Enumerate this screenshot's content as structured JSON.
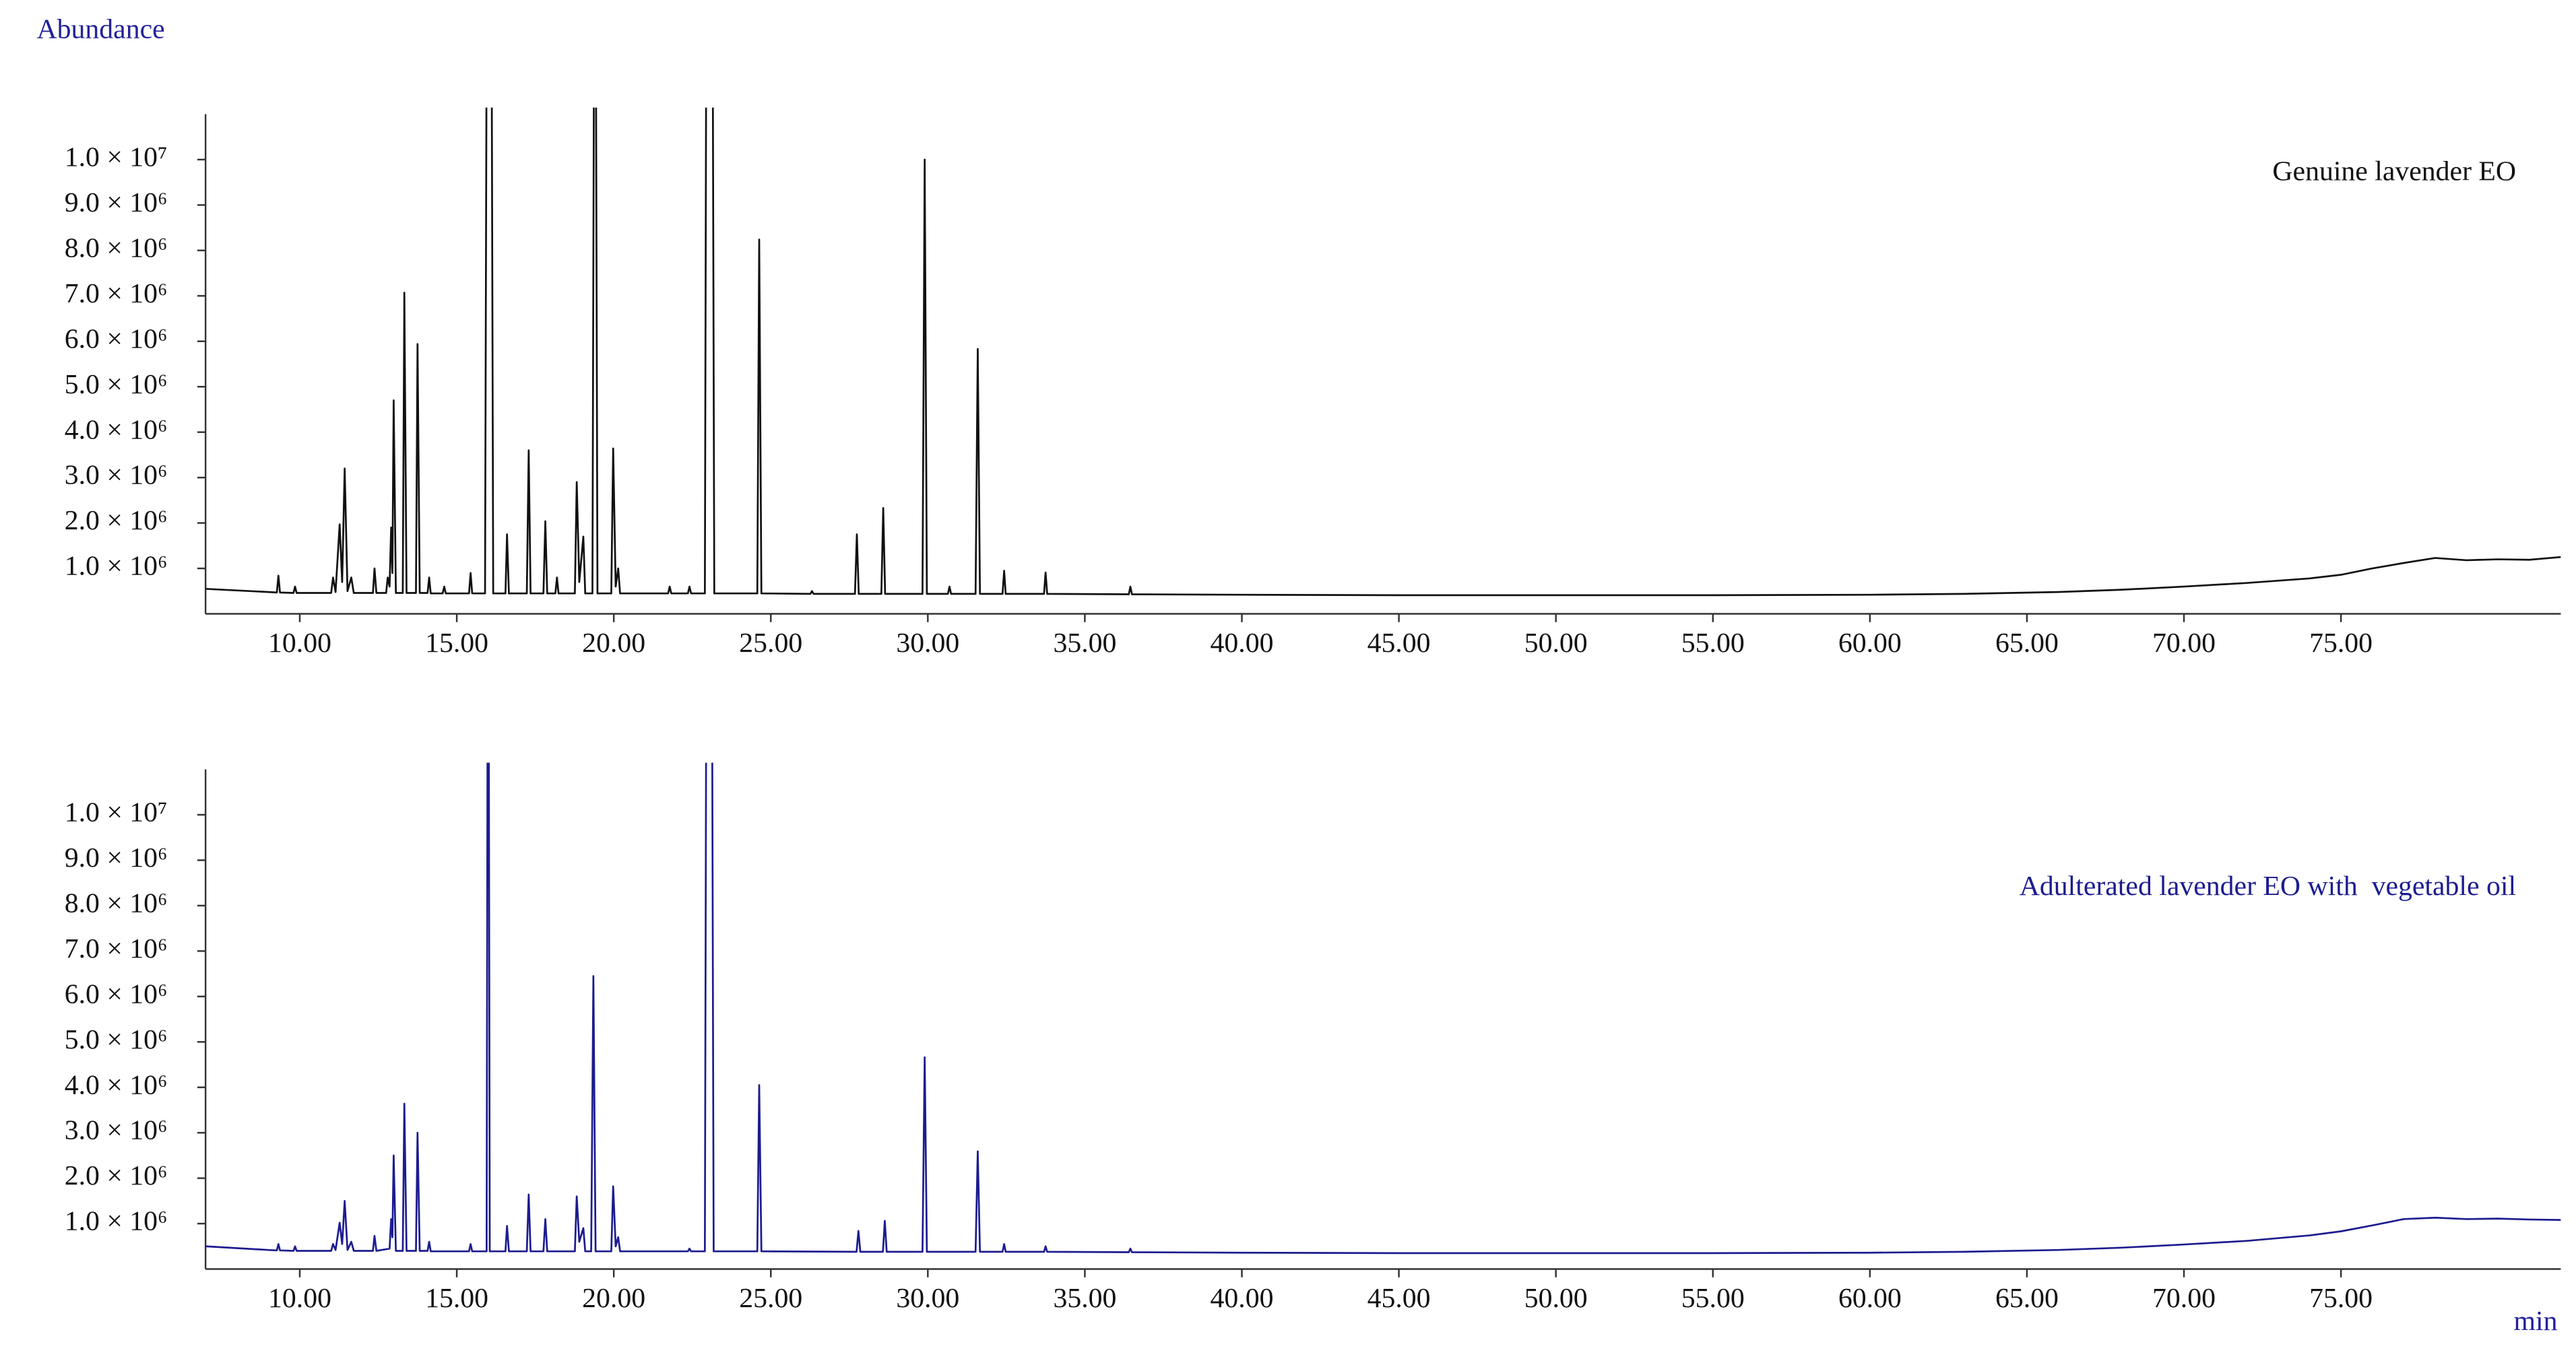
{
  "chart_data": [
    {
      "type": "line",
      "y_label": "Abundance",
      "legend": "upper right",
      "xlim": [
        7,
        82
      ],
      "ylim": [
        0,
        11000000
      ],
      "xticks": [
        {
          "value": 10,
          "label": "10.00"
        },
        {
          "value": 15,
          "label": "15.00"
        },
        {
          "value": 20,
          "label": "20.00"
        },
        {
          "value": 25,
          "label": "25.00"
        },
        {
          "value": 30,
          "label": "30.00"
        },
        {
          "value": 35,
          "label": "35.00"
        },
        {
          "value": 40,
          "label": "40.00"
        },
        {
          "value": 45,
          "label": "45.00"
        },
        {
          "value": 50,
          "label": "50.00"
        },
        {
          "value": 55,
          "label": "55.00"
        },
        {
          "value": 60,
          "label": "60.00"
        },
        {
          "value": 65,
          "label": "65.00"
        },
        {
          "value": 70,
          "label": "70.00"
        },
        {
          "value": 75,
          "label": "75.00"
        }
      ],
      "yticks": [
        {
          "value": 1000000,
          "label": "1.0 × 10⁶"
        },
        {
          "value": 2000000,
          "label": "2.0 × 10⁶"
        },
        {
          "value": 3000000,
          "label": "3.0 × 10⁶"
        },
        {
          "value": 4000000,
          "label": "4.0 × 10⁶"
        },
        {
          "value": 5000000,
          "label": "5.0 × 10⁶"
        },
        {
          "value": 6000000,
          "label": "6.0 × 10⁶"
        },
        {
          "value": 7000000,
          "label": "7.0 × 10⁶"
        },
        {
          "value": 8000000,
          "label": "8.0 × 10⁶"
        },
        {
          "value": 9000000,
          "label": "9.0 × 10⁶"
        },
        {
          "value": 10000000,
          "label": "1.0 × 10⁷"
        }
      ],
      "x": [
        7,
        9,
        9.27,
        9.32,
        9.37,
        9.8,
        9.85,
        9.9,
        11,
        11.06,
        11.14,
        11.27,
        11.35,
        11.43,
        11.52,
        11.64,
        11.72,
        12.33,
        12.38,
        12.44,
        12.75,
        12.8,
        12.86,
        12.91,
        12.95,
        12.99,
        13.06,
        13.28,
        13.33,
        13.4,
        13.7,
        13.75,
        13.82,
        14.07,
        14.12,
        14.17,
        14.55,
        14.6,
        14.65,
        15.39,
        15.44,
        15.49,
        15.9,
        15.98,
        16.08,
        16.16,
        16.55,
        16.6,
        16.66,
        17.23,
        17.29,
        17.35,
        17.76,
        17.82,
        17.88,
        18.14,
        18.19,
        18.24,
        18.76,
        18.82,
        18.9,
        19.03,
        19.09,
        19.32,
        19.4,
        19.48,
        19.92,
        19.98,
        20.06,
        20.14,
        20.2,
        21.73,
        21.78,
        21.83,
        22.36,
        22.41,
        22.46,
        22.9,
        22.97,
        23.12,
        23.2,
        24.57,
        24.63,
        24.7,
        26.26,
        26.31,
        26.36,
        27.68,
        27.74,
        27.8,
        28.52,
        28.58,
        28.64,
        29.83,
        29.9,
        29.97,
        30.64,
        30.69,
        30.74,
        31.52,
        31.59,
        31.66,
        32.38,
        32.43,
        32.48,
        33.7,
        33.75,
        33.8,
        36.4,
        36.45,
        36.5,
        40,
        45,
        50,
        55,
        60,
        63,
        66,
        68,
        70,
        72,
        74,
        75,
        76,
        77,
        78,
        79,
        80,
        81,
        82
      ],
      "series": [
        {
          "name": "Genuine lavender EO",
          "color": "#111111",
          "values": [
            550000,
            480000,
            470000,
            840000,
            470000,
            460000,
            600000,
            460000,
            460000,
            800000,
            480000,
            1970000,
            700000,
            3200000,
            500000,
            800000,
            460000,
            460000,
            1000000,
            460000,
            460000,
            800000,
            600000,
            1900000,
            900000,
            4700000,
            460000,
            460000,
            7070000,
            460000,
            460000,
            5940000,
            460000,
            460000,
            800000,
            450000,
            450000,
            600000,
            450000,
            450000,
            900000,
            450000,
            450000,
            20000000,
            20000000,
            450000,
            450000,
            1750000,
            450000,
            450000,
            3600000,
            450000,
            450000,
            2040000,
            450000,
            450000,
            800000,
            450000,
            450000,
            2900000,
            700000,
            1700000,
            450000,
            450000,
            20000000,
            450000,
            450000,
            3640000,
            600000,
            1000000,
            450000,
            450000,
            600000,
            450000,
            450000,
            600000,
            450000,
            450000,
            20000000,
            20000000,
            450000,
            450000,
            8240000,
            450000,
            440000,
            500000,
            440000,
            440000,
            1750000,
            440000,
            440000,
            2330000,
            440000,
            440000,
            10000000,
            440000,
            440000,
            600000,
            440000,
            440000,
            5830000,
            440000,
            440000,
            950000,
            440000,
            440000,
            910000,
            440000,
            430000,
            600000,
            430000,
            420000,
            410000,
            410000,
            410000,
            420000,
            440000,
            480000,
            530000,
            600000,
            680000,
            780000,
            860000,
            1000000,
            1120000,
            1230000,
            1180000,
            1200000,
            1190000,
            1250000
          ]
        }
      ]
    },
    {
      "type": "line",
      "x_label": "min",
      "legend": "upper right",
      "xlim": [
        7,
        82
      ],
      "ylim": [
        0,
        11000000
      ],
      "xticks": [
        {
          "value": 10,
          "label": "10.00"
        },
        {
          "value": 15,
          "label": "15.00"
        },
        {
          "value": 20,
          "label": "20.00"
        },
        {
          "value": 25,
          "label": "25.00"
        },
        {
          "value": 30,
          "label": "30.00"
        },
        {
          "value": 35,
          "label": "35.00"
        },
        {
          "value": 40,
          "label": "40.00"
        },
        {
          "value": 45,
          "label": "45.00"
        },
        {
          "value": 50,
          "label": "50.00"
        },
        {
          "value": 55,
          "label": "55.00"
        },
        {
          "value": 60,
          "label": "60.00"
        },
        {
          "value": 65,
          "label": "65.00"
        },
        {
          "value": 70,
          "label": "70.00"
        },
        {
          "value": 75,
          "label": "75.00"
        }
      ],
      "yticks": [
        {
          "value": 1000000,
          "label": "1.0 × 10⁶"
        },
        {
          "value": 2000000,
          "label": "2.0 × 10⁶"
        },
        {
          "value": 3000000,
          "label": "3.0 × 10⁶"
        },
        {
          "value": 4000000,
          "label": "4.0 × 10⁶"
        },
        {
          "value": 5000000,
          "label": "5.0 × 10⁶"
        },
        {
          "value": 6000000,
          "label": "6.0 × 10⁶"
        },
        {
          "value": 7000000,
          "label": "7.0 × 10⁶"
        },
        {
          "value": 8000000,
          "label": "8.0 × 10⁶"
        },
        {
          "value": 9000000,
          "label": "9.0 × 10⁶"
        },
        {
          "value": 10000000,
          "label": "1.0 × 10⁷"
        }
      ],
      "x": [
        7,
        9,
        9.27,
        9.32,
        9.37,
        9.8,
        9.85,
        9.9,
        11,
        11.06,
        11.14,
        11.27,
        11.35,
        11.43,
        11.52,
        11.64,
        11.72,
        12.33,
        12.38,
        12.44,
        12.86,
        12.91,
        12.95,
        12.99,
        13.06,
        13.28,
        13.33,
        13.4,
        13.7,
        13.75,
        13.82,
        14.07,
        14.12,
        14.17,
        15.39,
        15.44,
        15.49,
        15.95,
        16,
        16.05,
        16.55,
        16.6,
        16.66,
        17.23,
        17.29,
        17.35,
        17.76,
        17.82,
        17.88,
        18.76,
        18.82,
        18.9,
        19.03,
        19.09,
        19.28,
        19.35,
        19.42,
        19.92,
        19.98,
        20.06,
        20.14,
        20.2,
        22.36,
        22.41,
        22.46,
        22.9,
        22.97,
        23.1,
        23.18,
        24.57,
        24.63,
        24.7,
        27.73,
        27.79,
        27.85,
        28.57,
        28.63,
        28.69,
        29.83,
        29.9,
        29.97,
        31.52,
        31.59,
        31.66,
        32.38,
        32.43,
        32.48,
        33.7,
        33.75,
        33.8,
        36.4,
        36.45,
        36.5,
        40,
        45,
        50,
        55,
        60,
        63,
        66,
        68,
        70,
        72,
        74,
        75,
        76,
        77,
        78,
        79,
        80,
        81,
        82
      ],
      "series": [
        {
          "name": "Adulterated lavender EO with  vegetable oil",
          "color": "#1c1c8f",
          "values": [
            500000,
            420000,
            410000,
            550000,
            410000,
            400000,
            500000,
            400000,
            400000,
            550000,
            420000,
            1020000,
            550000,
            1500000,
            420000,
            600000,
            400000,
            400000,
            730000,
            400000,
            450000,
            1100000,
            700000,
            2500000,
            400000,
            400000,
            3640000,
            400000,
            400000,
            3000000,
            400000,
            400000,
            600000,
            390000,
            390000,
            550000,
            390000,
            390000,
            20000000,
            390000,
            390000,
            950000,
            390000,
            390000,
            1640000,
            390000,
            390000,
            1100000,
            390000,
            390000,
            1600000,
            600000,
            900000,
            390000,
            390000,
            6450000,
            390000,
            390000,
            1820000,
            500000,
            700000,
            390000,
            390000,
            450000,
            390000,
            390000,
            20000000,
            20000000,
            390000,
            390000,
            4050000,
            390000,
            380000,
            840000,
            380000,
            380000,
            1060000,
            380000,
            380000,
            4660000,
            380000,
            380000,
            2590000,
            380000,
            380000,
            550000,
            380000,
            380000,
            500000,
            380000,
            370000,
            450000,
            370000,
            360000,
            350000,
            350000,
            350000,
            360000,
            380000,
            420000,
            470000,
            540000,
            620000,
            740000,
            830000,
            960000,
            1100000,
            1130000,
            1100000,
            1110000,
            1090000,
            1080000
          ]
        }
      ]
    }
  ]
}
